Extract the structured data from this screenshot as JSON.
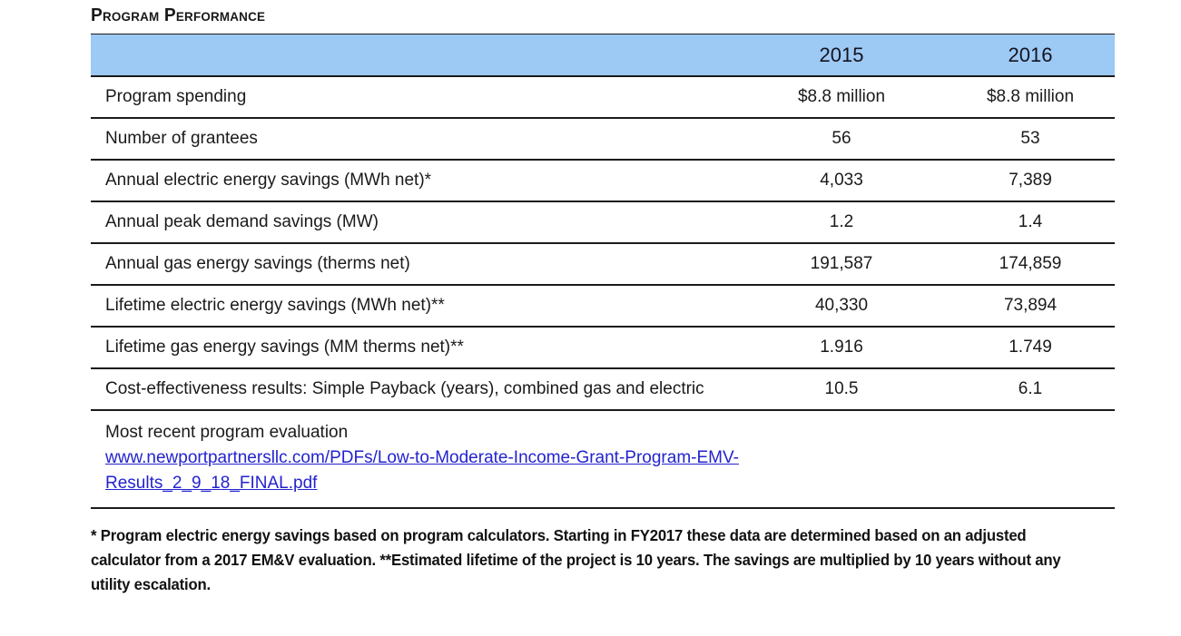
{
  "page": {
    "title": "Program Performance"
  },
  "table": {
    "header": {
      "col_2015": "2015",
      "col_2016": "2016"
    },
    "rows": [
      {
        "label": "Program spending",
        "y2015": "$8.8 million",
        "y2016": "$8.8 million"
      },
      {
        "label": "Number of grantees",
        "y2015": "56",
        "y2016": "53"
      },
      {
        "label": "Annual electric energy savings (MWh net)*",
        "y2015": "4,033",
        "y2016": "7,389"
      },
      {
        "label": "Annual peak demand savings (MW)",
        "y2015": "1.2",
        "y2016": "1.4"
      },
      {
        "label": "Annual gas energy savings (therms net)",
        "y2015": "191,587",
        "y2016": "174,859"
      },
      {
        "label": "Lifetime electric energy savings (MWh net)**",
        "y2015": "40,330",
        "y2016": "73,894"
      },
      {
        "label": "Lifetime gas energy savings (MM therms net)**",
        "y2015": "1.916",
        "y2016": "1.749"
      },
      {
        "label": "Cost-effectiveness results: Simple Payback (years), combined gas and electric",
        "y2015": "10.5",
        "y2016": "6.1"
      }
    ],
    "evaluation": {
      "label": "Most recent program evaluation",
      "link_text": "www.newportpartnersllc.com/PDFs/Low-to-Moderate-Income-Grant-Program-EMV-Results_2_9_18_FINAL.pdf"
    }
  },
  "footnote": "* Program electric energy savings based on program calculators. Starting in FY2017 these data are determined based on an adjusted calculator from a 2017 EM&V evaluation.  **Estimated lifetime of the project is 10 years. The savings are multiplied by 10 years without any utility escalation.",
  "colors": {
    "header_bg": "#9DC9F5",
    "link": "#2323CE",
    "rule": "#1B1B1B",
    "text": "#1A1A1A"
  }
}
